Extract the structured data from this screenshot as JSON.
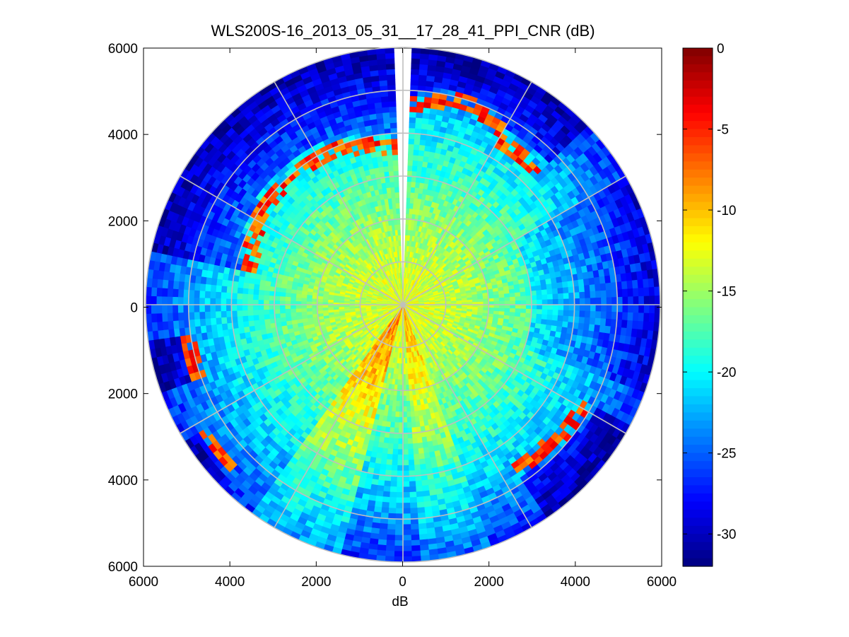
{
  "chart_data": {
    "type": "heatmap",
    "subtype": "polar-ppi",
    "title": "WLS200S-16_2013_05_31__17_28_41_PPI_CNR (dB)",
    "xlabel": "dB",
    "ylabel": "",
    "xlim": [
      -6000,
      6000
    ],
    "ylim": [
      -6000,
      6000
    ],
    "x_ticks": [
      -6000,
      -4000,
      -2000,
      0,
      2000,
      4000,
      6000
    ],
    "x_tick_labels": [
      "6000",
      "4000",
      "2000",
      "0",
      "2000",
      "4000",
      "6000"
    ],
    "y_ticks": [
      6000,
      4000,
      2000,
      0,
      -2000,
      -4000,
      -6000
    ],
    "y_tick_labels": [
      "6000",
      "4000",
      "2000",
      "0",
      "2000",
      "4000",
      "6000"
    ],
    "max_range": 6000,
    "range_rings": [
      1000,
      2000,
      3000,
      4000,
      5000,
      6000
    ],
    "spokes_deg": [
      0,
      30,
      60,
      90,
      120,
      150,
      180,
      210,
      240,
      270,
      300,
      330
    ],
    "grid": true,
    "colorbar": {
      "label": "dB",
      "min": -32,
      "max": 0,
      "ticks": [
        0,
        -5,
        -10,
        -15,
        -20,
        -25,
        -30
      ],
      "tick_labels": [
        "0",
        "-5",
        "-10",
        "-15",
        "-20",
        "-25",
        "-30"
      ],
      "colormap": "jet",
      "position": "right"
    },
    "field_description_values": {
      "near_range_cnr_db": -13,
      "far_range_cnr_db": -27,
      "hard_target_cnr_db": -3
    },
    "missing_sector_deg": [
      -1.5,
      1.5
    ]
  },
  "colors": {
    "grid": "#bfbfbf",
    "axes": "#000000",
    "background": "#ffffff"
  }
}
